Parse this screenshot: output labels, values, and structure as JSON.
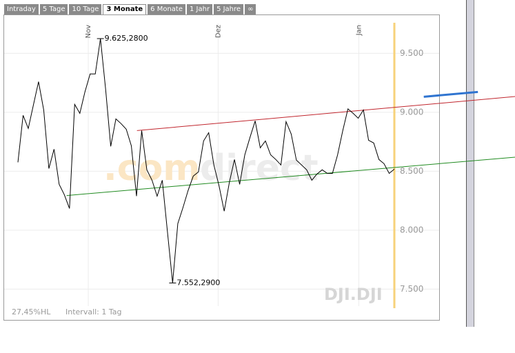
{
  "tabs": [
    "Intraday",
    "5 Tage",
    "10 Tage",
    "3 Monate",
    "6 Monate",
    "1 Jahr",
    "5 Jahre",
    "∞"
  ],
  "active_tab": 3,
  "chart_data": {
    "type": "line",
    "watermark": [
      ".com",
      "direct"
    ],
    "symbol": "DJI.DJI",
    "footer": [
      "27,45%HL",
      "Intervall: 1 Tag"
    ],
    "series": [
      {
        "color": "#000000",
        "values": [
          8576,
          8974,
          8863,
          9061,
          9260,
          9020,
          8523,
          8687,
          8389,
          8301,
          8184,
          9067,
          8991,
          9173,
          9325,
          9325,
          9625.28,
          9196,
          8711,
          8944,
          8904,
          8857,
          8716,
          8289,
          8845,
          8512,
          8424,
          8289,
          8424,
          7985,
          7552.29,
          8056,
          8190,
          8336,
          8459,
          8494,
          8757,
          8827,
          8553,
          8377,
          8161,
          8406,
          8600,
          8389,
          8640,
          8787,
          8927,
          8699,
          8757,
          8640,
          8600,
          8553,
          8921,
          8816,
          8594,
          8553,
          8512,
          8424,
          8477,
          8512,
          8482,
          8482,
          8640,
          8845,
          9029,
          8991,
          8950,
          9020,
          8763,
          8740,
          8600,
          8564,
          8482,
          8518
        ]
      }
    ],
    "annotations": [
      {
        "value": 9625.28,
        "label": "9.625,2800"
      },
      {
        "value": 7552.29,
        "label": "7.552,2900"
      }
    ],
    "trendlines": [
      {
        "color": "#c0242c",
        "x": [
          22,
          94
        ],
        "y": [
          8845,
          9143
        ]
      },
      {
        "color": "#1f8a1f",
        "x": [
          9,
          94
        ],
        "y": [
          8294,
          8628
        ]
      },
      {
        "color": "#2f74d0",
        "x": [
          75,
          85
        ],
        "y": [
          9132,
          9173
        ]
      }
    ],
    "xlim": [
      0,
      73
    ],
    "xticks": [
      {
        "value": 13,
        "label": "Nov"
      },
      {
        "value": 37,
        "label": "Dez"
      },
      {
        "value": 63,
        "label": "Jan"
      }
    ],
    "ylim": [
      7350,
      9830
    ],
    "yticks": [
      {
        "value": 7500,
        "label": "7.500"
      },
      {
        "value": 8000,
        "label": "8.000"
      },
      {
        "value": 8500,
        "label": "8.500"
      },
      {
        "value": 9000,
        "label": "9.000"
      },
      {
        "value": 9500,
        "label": "9.500"
      }
    ],
    "grid": true
  }
}
